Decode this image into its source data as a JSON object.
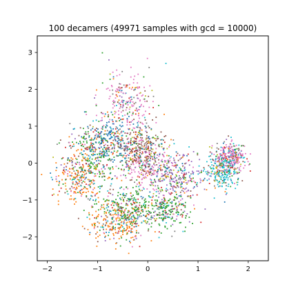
{
  "chart_data": {
    "type": "scatter",
    "title": "100 decamers (49971 samples with gcd = 10000)",
    "xlabel": "",
    "ylabel": "",
    "xlim": [
      -2.2,
      2.4
    ],
    "ylim": [
      -2.65,
      3.45
    ],
    "x_ticks": [
      -2,
      -1,
      0,
      1,
      2
    ],
    "x_tick_labels": [
      "−2",
      "−1",
      "0",
      "1",
      "2"
    ],
    "y_ticks": [
      -2,
      -1,
      0,
      1,
      2,
      3
    ],
    "y_tick_labels": [
      "−2",
      "−1",
      "0",
      "1",
      "2",
      "3"
    ],
    "grid": false,
    "legend": "none",
    "palette": [
      "#1f77b4",
      "#ff7f0e",
      "#2ca02c",
      "#d62728",
      "#9467bd",
      "#8c564b",
      "#e377c2",
      "#7f7f7f",
      "#bcbd22",
      "#17becf"
    ],
    "clusters": [
      {
        "center": [
          -0.45,
          1.65
        ],
        "spread": [
          0.28,
          0.45
        ],
        "dominant_color": "#e377c2"
      },
      {
        "center": [
          -1.35,
          -0.45
        ],
        "spread": [
          0.3,
          0.32
        ],
        "dominant_color": "#ff7f0e"
      },
      {
        "center": [
          -1.05,
          0.15
        ],
        "spread": [
          0.28,
          0.4
        ],
        "dominant_color": "#2ca02c"
      },
      {
        "center": [
          -0.6,
          -1.65
        ],
        "spread": [
          0.28,
          0.3
        ],
        "dominant_color": "#ff7f0e"
      },
      {
        "center": [
          -0.4,
          -1.2
        ],
        "spread": [
          0.3,
          0.28
        ],
        "dominant_color": "#2ca02c"
      },
      {
        "center": [
          0.0,
          -0.1
        ],
        "spread": [
          0.28,
          0.3
        ],
        "dominant_color": "#e377c2"
      },
      {
        "center": [
          0.65,
          -0.4
        ],
        "spread": [
          0.25,
          0.3
        ],
        "dominant_color": "#9467bd"
      },
      {
        "center": [
          0.35,
          -1.25
        ],
        "spread": [
          0.25,
          0.3
        ],
        "dominant_color": "#2ca02c"
      },
      {
        "center": [
          1.5,
          -0.2
        ],
        "spread": [
          0.15,
          0.25
        ],
        "dominant_color": "#17becf"
      },
      {
        "center": [
          1.65,
          0.2
        ],
        "spread": [
          0.15,
          0.2
        ],
        "dominant_color": "#e377c2"
      },
      {
        "center": [
          -0.8,
          0.6
        ],
        "spread": [
          0.3,
          0.3
        ],
        "dominant_color": "#1f77b4"
      },
      {
        "center": [
          -0.1,
          0.4
        ],
        "spread": [
          0.25,
          0.3
        ],
        "dominant_color": "#8c564b"
      }
    ]
  }
}
